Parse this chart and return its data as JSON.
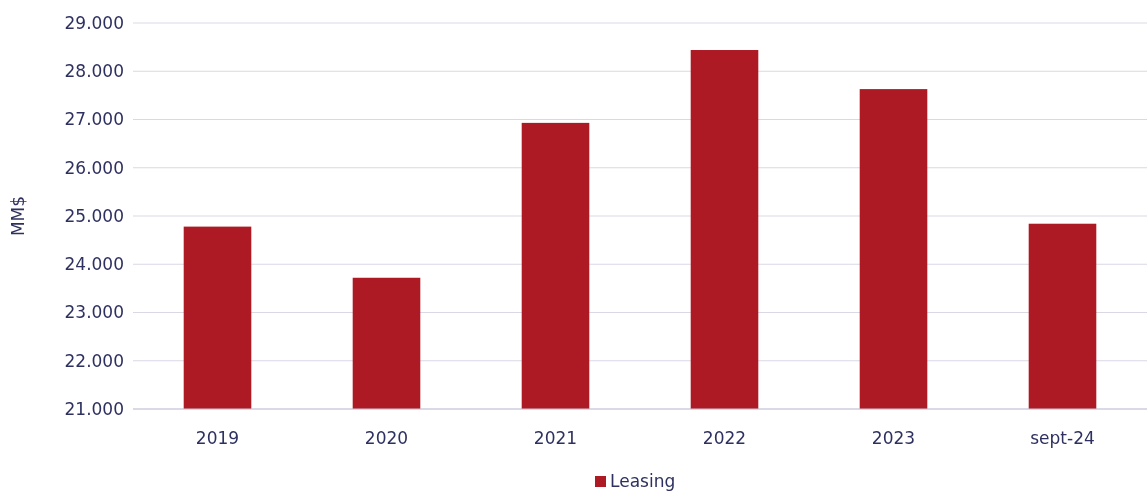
{
  "chart_data": {
    "type": "bar",
    "ylabel": "MM$",
    "categories": [
      "2019",
      "2020",
      "2021",
      "2022",
      "2023",
      "sept-24"
    ],
    "series": [
      {
        "name": "Leasing",
        "color": "#ad1a24",
        "values": [
          24780,
          23720,
          26930,
          28440,
          27630,
          24840
        ]
      }
    ],
    "ylim": [
      21000,
      29000
    ],
    "yticks": [
      {
        "value": 21000,
        "label": "21.000"
      },
      {
        "value": 22000,
        "label": "22.000"
      },
      {
        "value": 23000,
        "label": "23.000"
      },
      {
        "value": 24000,
        "label": "24.000"
      },
      {
        "value": 25000,
        "label": "25.000"
      },
      {
        "value": 26000,
        "label": "26.000"
      },
      {
        "value": 27000,
        "label": "27.000"
      },
      {
        "value": 28000,
        "label": "28.000"
      },
      {
        "value": 29000,
        "label": "29.000"
      }
    ],
    "grid": "y",
    "legend": "bottom"
  }
}
